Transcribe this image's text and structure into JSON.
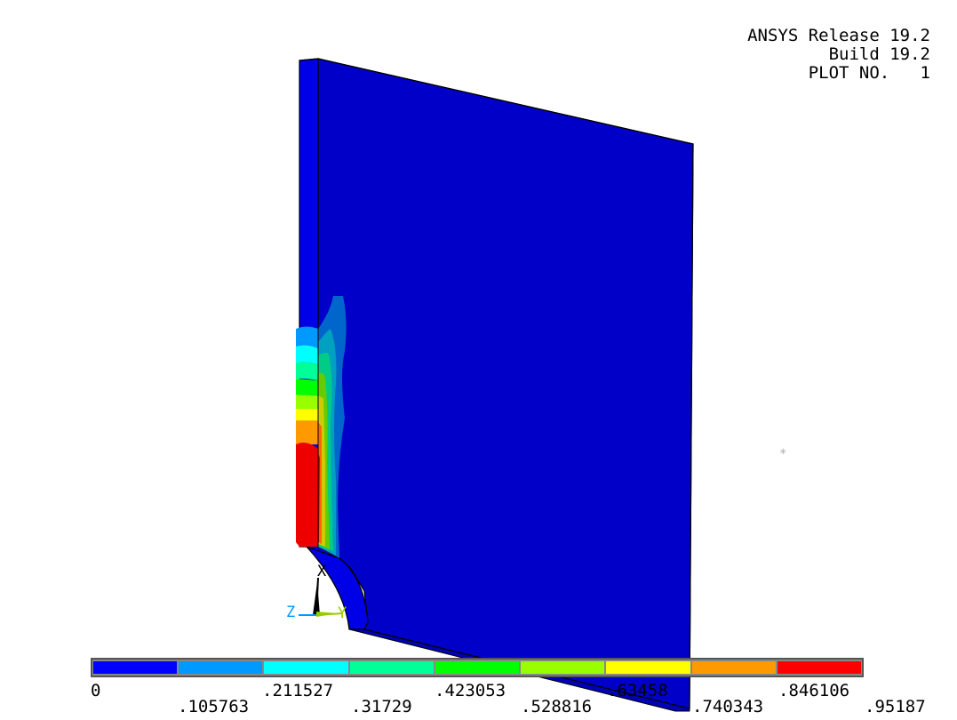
{
  "header": {
    "line1": "ANSYS Release 19.2",
    "line2": "Build 19.2",
    "line3": "PLOT NO.   1"
  },
  "triad": {
    "x_label": "X",
    "y_label": "Y",
    "z_label": "Z"
  },
  "legend": {
    "colors": [
      "#0000ff",
      "#0099ff",
      "#00ffff",
      "#00ff99",
      "#00ff00",
      "#99ff00",
      "#ffff00",
      "#ff9900",
      "#ff0000"
    ],
    "labels_top": [
      "0",
      ".211527",
      ".423053",
      ".63458",
      ".846106"
    ],
    "labels_bottom": [
      ".105763",
      ".31729",
      ".528816",
      ".740343",
      ".95187"
    ]
  },
  "contour_colors": {
    "face": "#0000c8",
    "edge_face": "#0000e6",
    "bottom_face": "#0000a0"
  }
}
